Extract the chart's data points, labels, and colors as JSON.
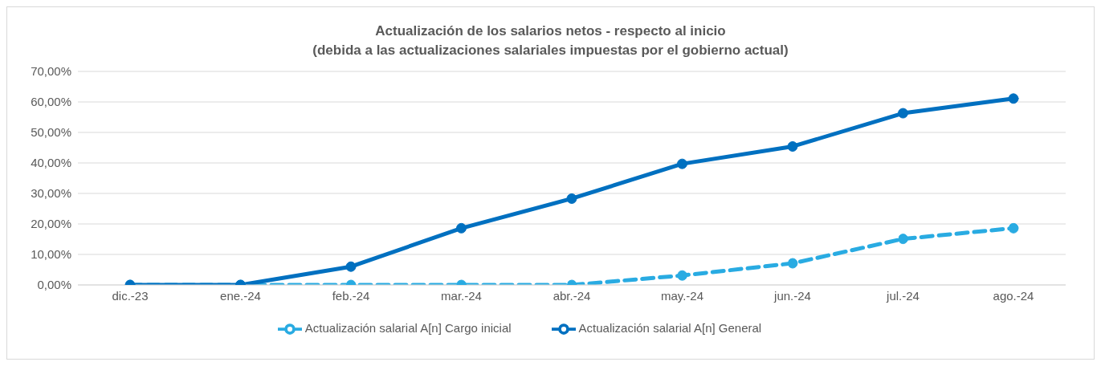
{
  "chart_data": {
    "type": "line",
    "title": "Actualización de los salarios netos - respecto al inicio",
    "subtitle": "(debida a las actualizaciones salariales impuestas por el gobierno actual)",
    "categories": [
      "dic.-23",
      "ene.-24",
      "feb.-24",
      "mar.-24",
      "abr.-24",
      "may.-24",
      "jun.-24",
      "jul.-24",
      "ago.-24"
    ],
    "series": [
      {
        "name": "Actualización salarial A[n] Cargo inicial",
        "color": "#29abe2",
        "line_style": "dashed",
        "values": [
          0,
          0,
          0,
          0,
          0,
          3.1,
          7.1,
          15.1,
          18.6
        ]
      },
      {
        "name": "Actualización salarial A[n] General",
        "color": "#0070c0",
        "line_style": "solid",
        "values": [
          0,
          0,
          6.0,
          18.6,
          28.3,
          39.7,
          45.4,
          56.3,
          61.1
        ]
      }
    ],
    "ylim": [
      0,
      70
    ],
    "yticks": [
      {
        "value": 0,
        "label": "0,00%"
      },
      {
        "value": 10,
        "label": "10,00%"
      },
      {
        "value": 20,
        "label": "20,00%"
      },
      {
        "value": 30,
        "label": "30,00%"
      },
      {
        "value": 40,
        "label": "40,00%"
      },
      {
        "value": 50,
        "label": "50,00%"
      },
      {
        "value": 60,
        "label": "60,00%"
      },
      {
        "value": 70,
        "label": "70,00%"
      }
    ],
    "grid": "y",
    "legend": "bottom",
    "marker": "circle"
  }
}
